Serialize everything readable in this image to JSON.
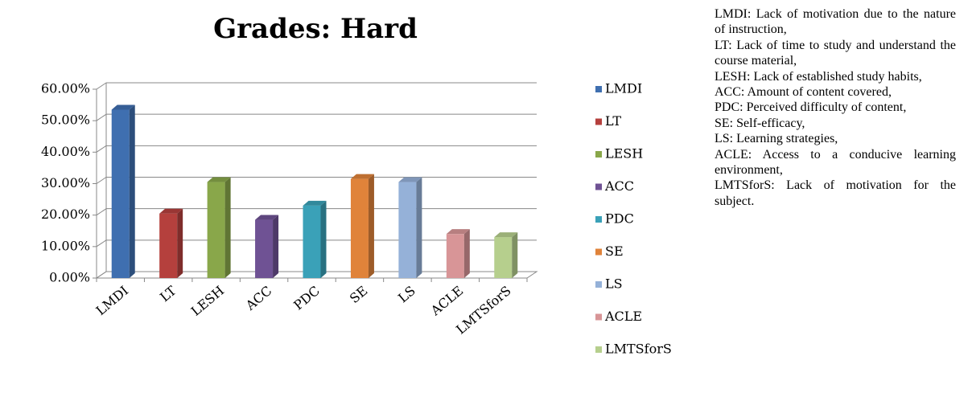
{
  "chart_data": {
    "type": "bar3d",
    "title": "Grades: Hard",
    "categories": [
      "LMDI",
      "LT",
      "LESH",
      "ACC",
      "PDC",
      "SE",
      "LS",
      "ACLE",
      "LMTSforS"
    ],
    "values": [
      53.5,
      20.5,
      30.5,
      18.5,
      23,
      31.5,
      30.5,
      14,
      13
    ],
    "colors": [
      "#3f6fb0",
      "#b5403d",
      "#89a74a",
      "#6f5294",
      "#3aa1b8",
      "#e0833a",
      "#95b1d8",
      "#d89597",
      "#b6cf8d"
    ],
    "ylim": [
      0,
      60
    ],
    "yticks": [
      {
        "value": 0,
        "label": "0.00%"
      },
      {
        "value": 10,
        "label": "10.00%"
      },
      {
        "value": 20,
        "label": "20.00%"
      },
      {
        "value": 30,
        "label": "30.00%"
      },
      {
        "value": 40,
        "label": "40.00%"
      },
      {
        "value": 50,
        "label": "50.00%"
      },
      {
        "value": 60,
        "label": "60.00%"
      }
    ],
    "grid": true,
    "legend": "right",
    "notes": [
      "LMDI: Lack of motivation due to the nature of instruction,",
      "LT: Lack of time to study and understand the course material,",
      "LESH: Lack of established study habits,",
      "ACC: Amount of content covered,",
      "PDC: Perceived difficulty of content,",
      "SE: Self-efficacy,",
      "LS: Learning strategies,",
      "ACLE: Access to a conducive learning environment,",
      "LMTSforS: Lack of motivation for the subject."
    ]
  }
}
